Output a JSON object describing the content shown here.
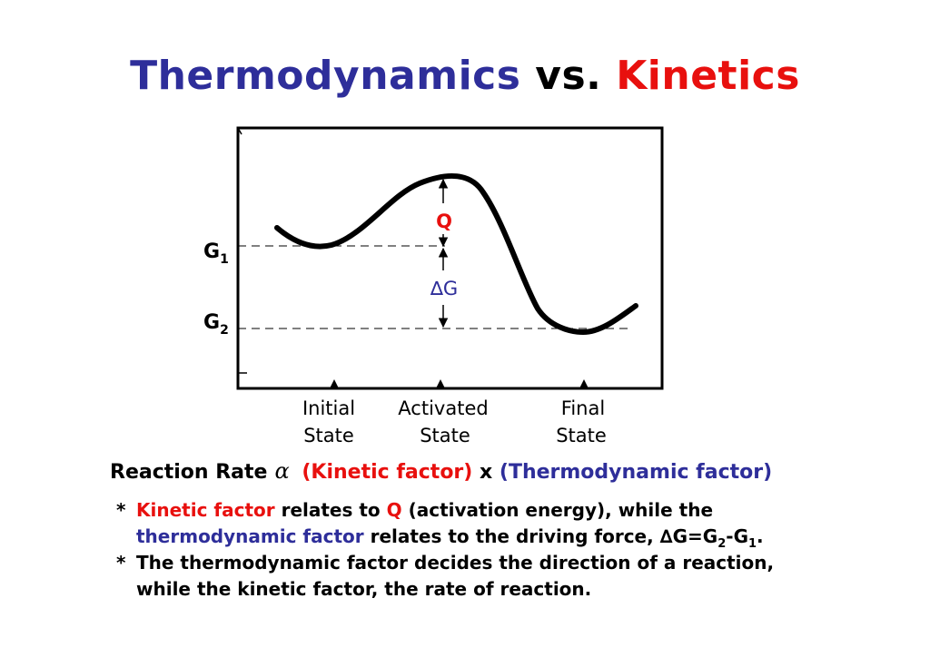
{
  "title": {
    "part1": "Thermodynamics",
    "part2": "vs.",
    "part3": "Kinetics",
    "colors": {
      "thermo": "#2e2e9a",
      "vs": "#000000",
      "kinetics": "#e8100e"
    }
  },
  "diagram": {
    "g1_label": "G",
    "g1_sub": "1",
    "g2_label": "G",
    "g2_sub": "2",
    "q_label": "Q",
    "delta_g_label": "∆G",
    "states": [
      {
        "line1": "Initial",
        "line2": "State"
      },
      {
        "line1": "Activated",
        "line2": "State"
      },
      {
        "line1": "Final",
        "line2": "State"
      }
    ]
  },
  "rate": {
    "prefix": "Reaction Rate",
    "alpha": "α",
    "kinetic": "(Kinetic factor)",
    "times": "x",
    "thermo": "(Thermodynamic factor)"
  },
  "notes": {
    "star": "*",
    "n1_kinetic": "Kinetic factor",
    "n1_relates": "relates to",
    "n1_q": "Q",
    "n1_rest": "(activation energy), while the",
    "n1_thermo": "thermodynamic factor",
    "n1_rest2": "relates to the driving force, ∆G=G",
    "n1_sub2": "2",
    "n1_minus": "-G",
    "n1_sub1": "1",
    "n1_end": ".",
    "n2_line1": "The thermodynamic factor decides the direction of a reaction,",
    "n2_line2": "while the kinetic factor, the rate of reaction."
  }
}
